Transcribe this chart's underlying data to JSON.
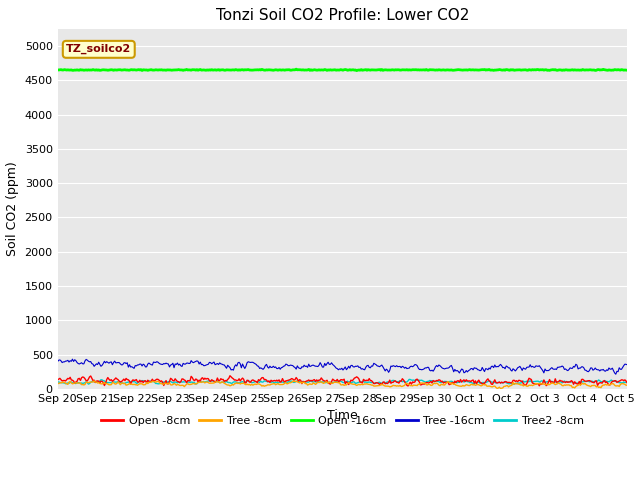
{
  "title": "Tonzi Soil CO2 Profile: Lower CO2",
  "xlabel": "Time",
  "ylabel": "Soil CO2 (ppm)",
  "ylim": [
    0,
    5250
  ],
  "yticks": [
    0,
    500,
    1000,
    1500,
    2000,
    2500,
    3000,
    3500,
    4000,
    4500,
    5000
  ],
  "background_color": "#e8e8e8",
  "series": {
    "open_8cm": {
      "label": "Open -8cm",
      "color": "#ff0000",
      "lw": 1.0
    },
    "tree_8cm": {
      "label": "Tree -8cm",
      "color": "#ffa500",
      "lw": 1.0
    },
    "open_16cm": {
      "label": "Open -16cm",
      "color": "#00ff00",
      "lw": 2.0
    },
    "tree_16cm": {
      "label": "Tree -16cm",
      "color": "#0000cc",
      "lw": 0.8
    },
    "tree2_8cm": {
      "label": "Tree2 -8cm",
      "color": "#00cccc",
      "lw": 1.0
    }
  },
  "n_points": 500,
  "x_start": 20,
  "x_end": 35.2,
  "xtick_positions": [
    20,
    21,
    22,
    23,
    24,
    25,
    26,
    27,
    28,
    29,
    30,
    31,
    32,
    33,
    34,
    35
  ],
  "xtick_labels": [
    "Sep 20",
    "Sep 21",
    "Sep 22",
    "Sep 23",
    "Sep 24",
    "Sep 25",
    "Sep 26",
    "Sep 27",
    "Sep 28",
    "Sep 29",
    "Sep 30",
    "Oct 1",
    "Oct 2",
    "Oct 3",
    "Oct 4",
    "Oct 5"
  ],
  "legend_text_color": "#800000",
  "legend_bg": "#ffffcc",
  "legend_border": "#cc9900",
  "title_fontsize": 11,
  "axis_label_fontsize": 9,
  "tick_fontsize": 8
}
